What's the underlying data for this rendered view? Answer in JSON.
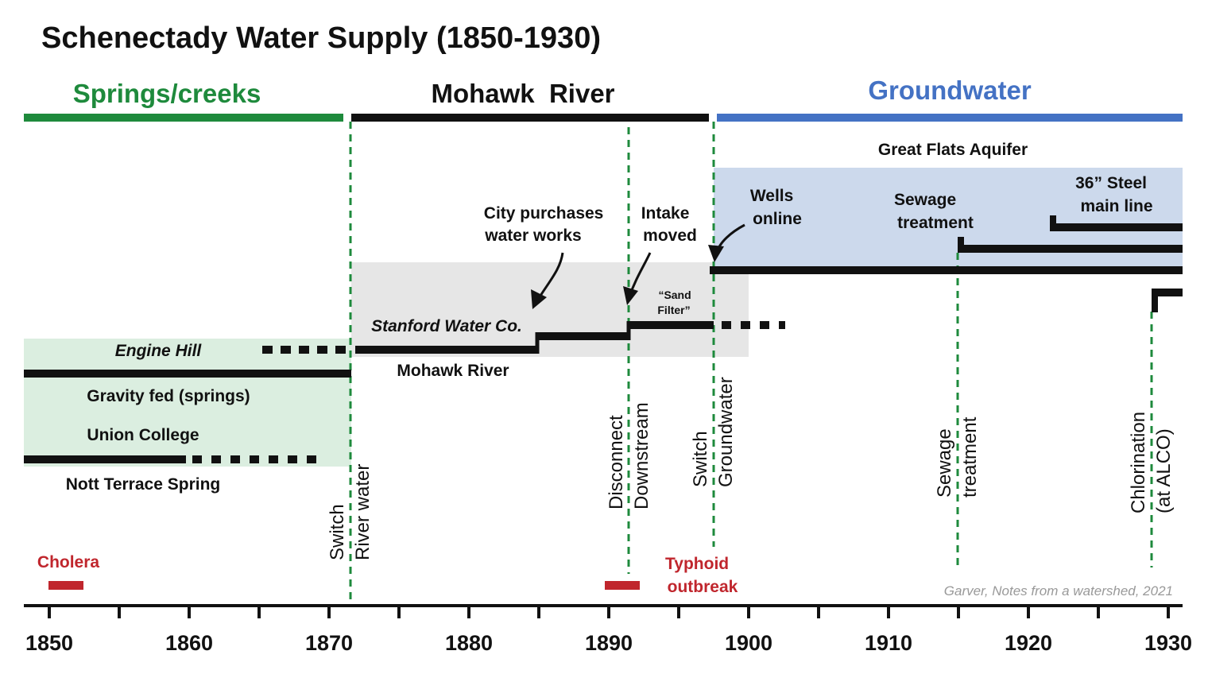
{
  "title": "Schenectady Water Supply (1850-1930)",
  "colors": {
    "green": "#1e8a3c",
    "blue": "#4472c4",
    "red": "#c0262d",
    "black": "#111111",
    "green_fill": "#dbeee0",
    "gray_fill": "#e6e6e6",
    "blue_fill": "#ccd9ec"
  },
  "eras": [
    {
      "label": "Springs/creeks",
      "start": 1850,
      "end": 1871.5,
      "color": "#1e8a3c"
    },
    {
      "label": "Mohawk  River",
      "start": 1872,
      "end": 1897.5,
      "color": "#111111"
    },
    {
      "label": "Groundwater",
      "start": 1898,
      "end": 1931,
      "color": "#4472c4"
    }
  ],
  "sources": {
    "engine_hill": "Engine Hill",
    "gravity_fed": "Gravity fed (springs)",
    "union_college": "Union College",
    "nott_terrace": "Nott Terrace Spring",
    "stanford": "Stanford Water Co.",
    "mohawk_river": "Mohawk River",
    "great_flats": "Great Flats Aquifer"
  },
  "annotations": {
    "city_purchases": [
      "City purchases",
      "water works"
    ],
    "intake_moved": [
      "Intake",
      "moved"
    ],
    "sand_filter": [
      "“Sand",
      "Filter”"
    ],
    "wells_online": [
      "Wells",
      "online"
    ],
    "sewage_treatment": [
      "Sewage",
      "treatment"
    ],
    "steel_main": [
      "36” Steel",
      "main line"
    ]
  },
  "events": [
    {
      "year": 1871.5,
      "lines": [
        "Switch",
        "River water"
      ]
    },
    {
      "year": 1891.5,
      "lines": [
        "Disconnect",
        "Downstream"
      ]
    },
    {
      "year": 1897.5,
      "lines": [
        "Switch",
        "Groundwater"
      ]
    },
    {
      "year": 1915,
      "lines": [
        "Sewage",
        "treatment"
      ]
    },
    {
      "year": 1929,
      "lines": [
        "Chlorination",
        "(at ALCO)"
      ]
    }
  ],
  "outbreaks": [
    {
      "label": "Cholera",
      "start": 1850,
      "end": 1852.5
    },
    {
      "label_lines": [
        "Typhoid",
        "outbreak"
      ],
      "start": 1890,
      "end": 1892.5
    }
  ],
  "credit": "Garver, Notes from a watershed, 2021",
  "axis": {
    "ticks": [
      "1850",
      "1860",
      "1870",
      "1880",
      "1890",
      "1900",
      "1910",
      "1920",
      "1930"
    ]
  }
}
